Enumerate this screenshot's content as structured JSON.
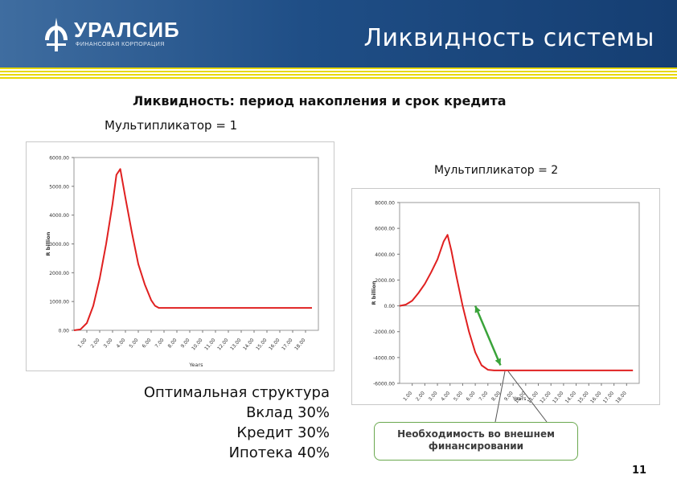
{
  "header": {
    "logo_text": "УРАЛСИБ",
    "logo_sub": "ФИНАНСОВАЯ КОРПОРАЦИЯ",
    "title": "Ликвидность системы",
    "colors": {
      "band": "#1f4e86",
      "stripe": "#e8d800"
    }
  },
  "subtitle": "Ликвидность: период накопления и срок кредита",
  "left_label": "Мультипликатор = 1",
  "right_label": "Мультипликатор = 2",
  "structure": {
    "title": "Оптимальная структура",
    "items": [
      "Вклад 30%",
      "Кредит 30%",
      "Ипотека 40%"
    ]
  },
  "callout": {
    "line1": "Необходимость во внешнем",
    "line2": "финансировании"
  },
  "page_number": "11",
  "chart_data": [
    {
      "type": "line",
      "title": "",
      "xlabel": "Years",
      "ylabel": "R billion",
      "xlim": [
        0,
        19
      ],
      "ylim": [
        0,
        6000
      ],
      "yticks": [
        "0.00",
        "1000.00",
        "2000.00",
        "3000.00",
        "4000.00",
        "5000.00",
        "6000.00"
      ],
      "xticks": [
        "1.00",
        "2.00",
        "3.00",
        "4.00",
        "5.00",
        "6.00",
        "7.00",
        "8.00",
        "9.00",
        "10.00",
        "11.00",
        "12.00",
        "13.00",
        "14.00",
        "15.00",
        "16.00",
        "17.00",
        "18.00"
      ],
      "grid": false,
      "series": [
        {
          "color": "#e02020",
          "x": [
            0,
            0.5,
            1.0,
            1.5,
            2.0,
            2.5,
            3.0,
            3.3,
            3.6,
            4.0,
            4.5,
            5.0,
            5.5,
            6.0,
            6.3,
            6.6,
            7.0,
            10,
            14,
            18.5
          ],
          "y": [
            0,
            30,
            250,
            850,
            1800,
            3000,
            4400,
            5400,
            5600,
            4600,
            3400,
            2300,
            1600,
            1050,
            850,
            780,
            780,
            780,
            780,
            780
          ]
        }
      ]
    },
    {
      "type": "line",
      "title": "",
      "xlabel": "Years",
      "ylabel": "R billion",
      "xlim": [
        0,
        19
      ],
      "ylim": [
        -6000,
        8000
      ],
      "yticks": [
        "-6000.00",
        "-4000.00",
        "-2000.00",
        "0.00",
        "2000.00",
        "4000.00",
        "6000.00",
        "8000.00"
      ],
      "xticks": [
        "1.00",
        "2.00",
        "3.00",
        "4.00",
        "5.00",
        "6.00",
        "7.00",
        "8.00",
        "9.00",
        "10.00",
        "11.00",
        "12.00",
        "13.00",
        "14.00",
        "15.00",
        "16.00",
        "17.00",
        "18.00"
      ],
      "grid": false,
      "series": [
        {
          "color": "#e02020",
          "x": [
            0,
            0.5,
            1.0,
            1.5,
            2.0,
            2.5,
            3.0,
            3.5,
            3.8,
            4.1,
            4.5,
            5.0,
            5.5,
            6.0,
            6.5,
            7.0,
            7.5,
            8.0,
            10,
            14,
            18.5
          ],
          "y": [
            0,
            100,
            400,
            1000,
            1700,
            2600,
            3600,
            5000,
            5500,
            4300,
            2300,
            0,
            -2000,
            -3600,
            -4600,
            -4950,
            -5000,
            -5000,
            -5000,
            -5000,
            -5000
          ]
        }
      ],
      "annotation": {
        "type": "double-arrow",
        "color": "#3aa33a",
        "from": [
          6.0,
          0
        ],
        "to": [
          8.0,
          -4600
        ]
      }
    }
  ]
}
